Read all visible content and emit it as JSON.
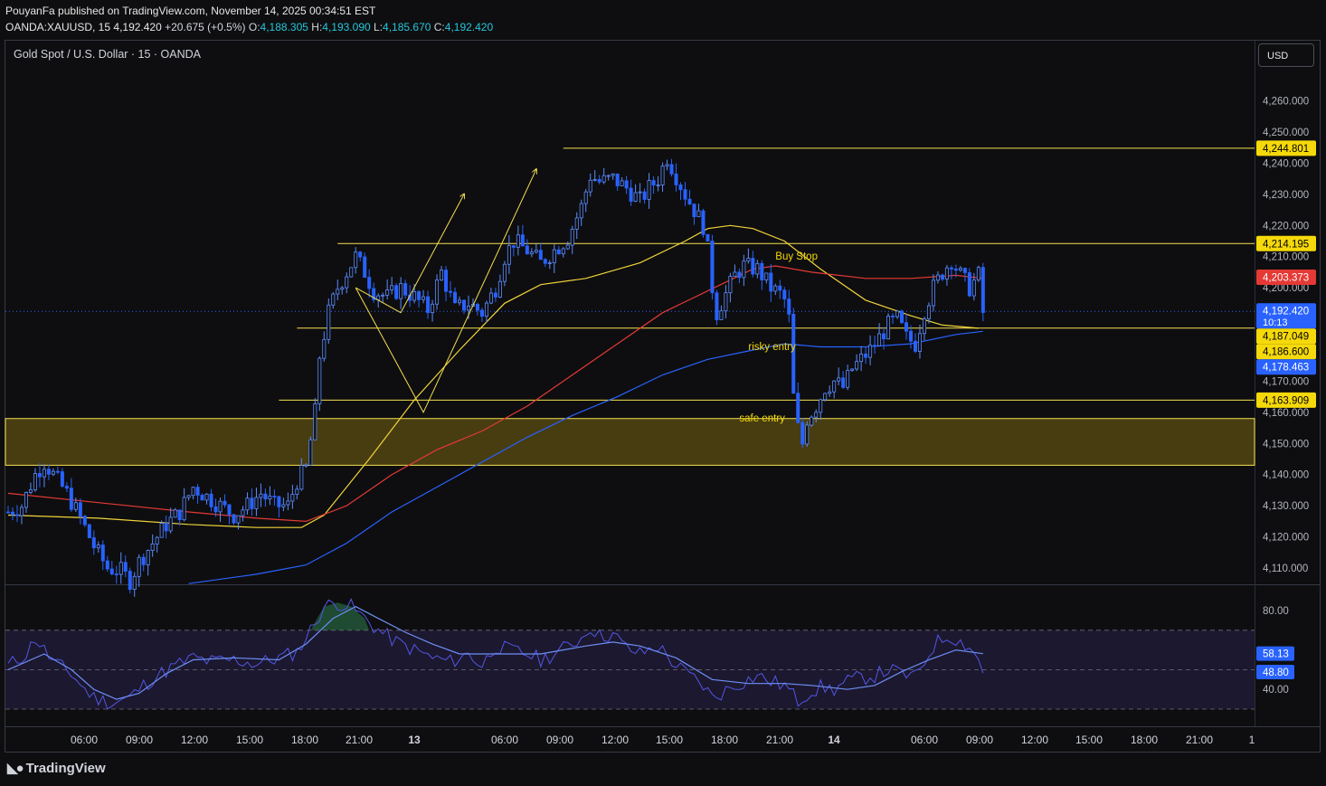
{
  "header": {
    "author": "PouyanFa",
    "published": "published on TradingView.com, November 14, 2025 00:34:51 EST",
    "symbol": "OANDA:XAUUSD, 15",
    "last": "4,192.420",
    "change": "+20.675 (+0.5%)",
    "o_label": "O:",
    "o": "4,188.305",
    "h_label": "H:",
    "h": "4,193.090",
    "l_label": "L:",
    "l": "4,185.670",
    "c_label": "C:",
    "c": "4,192.420"
  },
  "instrument_title": "Gold Spot / U.S. Dollar · 15 · OANDA",
  "currency_button": "USD",
  "footer_brand": "TradingView",
  "colors": {
    "background": "#0e0e10",
    "candle": "#2962ff",
    "ema_yellow": "#f0d43a",
    "ema_red": "#e53935",
    "ema_blue": "#2962ff",
    "level_line": "#f5e050",
    "zone_fill": "#5b4d12",
    "rsi": "#5356e6",
    "rsi_ma": "#6d8ff5"
  },
  "chart_data": {
    "type": "candlestick",
    "title": "Gold Spot / U.S. Dollar · 15 · OANDA",
    "y_axis": {
      "ticks": [
        4110,
        4120,
        4130,
        4140,
        4150,
        4160,
        4170,
        4180,
        4190,
        4200,
        4210,
        4220,
        4230,
        4240,
        4250,
        4260
      ],
      "tick_labels": [
        "4,110.000",
        "4,120.000",
        "4,130.000",
        "4,140.000",
        "4,150.000",
        "4,160.000",
        "4,170.000",
        "4,180.000",
        "4,190.000",
        "4,200.000",
        "4,210.000",
        "4,220.000",
        "4,230.000",
        "4,240.000",
        "4,250.000",
        "4,260.000"
      ],
      "ylim": [
        4105,
        4262
      ]
    },
    "x_axis": {
      "labels": [
        "06:00",
        "09:00",
        "12:00",
        "15:00",
        "18:00",
        "21:00",
        "13",
        "06:00",
        "09:00",
        "12:00",
        "15:00",
        "18:00",
        "21:00",
        "14",
        "06:00",
        "09:00",
        "12:00",
        "15:00",
        "18:00",
        "21:00",
        "1"
      ],
      "bold_labels": [
        "13",
        "14"
      ]
    },
    "price_path": [
      [
        0,
        4128
      ],
      [
        3,
        4130
      ],
      [
        6,
        4140
      ],
      [
        8,
        4144
      ],
      [
        10,
        4140
      ],
      [
        13,
        4134
      ],
      [
        16,
        4126
      ],
      [
        19,
        4117
      ],
      [
        22,
        4110
      ],
      [
        25,
        4109
      ],
      [
        27,
        4106
      ],
      [
        29,
        4112
      ],
      [
        32,
        4118
      ],
      [
        35,
        4124
      ],
      [
        38,
        4128
      ],
      [
        41,
        4136
      ],
      [
        44,
        4133
      ],
      [
        47,
        4130
      ],
      [
        50,
        4127
      ],
      [
        53,
        4130
      ],
      [
        56,
        4134
      ],
      [
        59,
        4130
      ],
      [
        62,
        4130
      ],
      [
        64,
        4138
      ],
      [
        66,
        4142
      ],
      [
        68,
        4160
      ],
      [
        69,
        4178
      ],
      [
        71,
        4192
      ],
      [
        73,
        4200
      ],
      [
        75,
        4205
      ],
      [
        77,
        4210
      ],
      [
        79,
        4205
      ],
      [
        81,
        4199
      ],
      [
        84,
        4197
      ],
      [
        87,
        4200
      ],
      [
        90,
        4197
      ],
      [
        93,
        4193
      ],
      [
        96,
        4205
      ],
      [
        99,
        4193
      ],
      [
        102,
        4195
      ],
      [
        105,
        4192
      ],
      [
        108,
        4200
      ],
      [
        110,
        4210
      ],
      [
        112,
        4215
      ],
      [
        115,
        4212
      ],
      [
        118,
        4208
      ],
      [
        121,
        4212
      ],
      [
        124,
        4216
      ],
      [
        127,
        4226
      ],
      [
        129,
        4236
      ],
      [
        131,
        4234
      ],
      [
        134,
        4235
      ],
      [
        137,
        4232
      ],
      [
        140,
        4228
      ],
      [
        142,
        4232
      ],
      [
        144,
        4235
      ],
      [
        146,
        4242
      ],
      [
        148,
        4236
      ],
      [
        150,
        4230
      ],
      [
        152,
        4225
      ],
      [
        154,
        4220
      ],
      [
        155,
        4212
      ],
      [
        156,
        4200
      ],
      [
        157,
        4192
      ],
      [
        159,
        4198
      ],
      [
        161,
        4204
      ],
      [
        163,
        4207
      ],
      [
        166,
        4206
      ],
      [
        169,
        4200
      ],
      [
        171,
        4198
      ],
      [
        172,
        4196
      ],
      [
        173,
        4190
      ],
      [
        174,
        4165
      ],
      [
        175,
        4155
      ],
      [
        176,
        4150
      ],
      [
        177,
        4158
      ],
      [
        179,
        4162
      ],
      [
        181,
        4168
      ],
      [
        183,
        4170
      ],
      [
        185,
        4168
      ],
      [
        187,
        4174
      ],
      [
        189,
        4177
      ],
      [
        191,
        4180
      ],
      [
        193,
        4184
      ],
      [
        195,
        4188
      ],
      [
        197,
        4190
      ],
      [
        199,
        4184
      ],
      [
        201,
        4182
      ],
      [
        203,
        4193
      ],
      [
        205,
        4200
      ],
      [
        207,
        4205
      ],
      [
        209,
        4209
      ],
      [
        211,
        4204
      ],
      [
        213,
        4200
      ],
      [
        215,
        4204
      ],
      [
        216,
        4192
      ]
    ],
    "series": [
      {
        "name": "",
        "kind": "ema",
        "color": "#f0d43a",
        "points": [
          [
            0,
            4127
          ],
          [
            20,
            4126
          ],
          [
            40,
            4124
          ],
          [
            55,
            4123
          ],
          [
            65,
            4123
          ],
          [
            70,
            4127
          ],
          [
            80,
            4145
          ],
          [
            90,
            4164
          ],
          [
            100,
            4180
          ],
          [
            110,
            4195
          ],
          [
            118,
            4201
          ],
          [
            128,
            4203
          ],
          [
            140,
            4208
          ],
          [
            150,
            4215
          ],
          [
            155,
            4219
          ],
          [
            160,
            4220
          ],
          [
            165,
            4219
          ],
          [
            172,
            4215
          ],
          [
            180,
            4206
          ],
          [
            190,
            4196
          ],
          [
            200,
            4191
          ],
          [
            207,
            4188
          ],
          [
            215,
            4187
          ]
        ]
      },
      {
        "name": "",
        "kind": "ema",
        "color": "#e53935",
        "points": [
          [
            0,
            4134
          ],
          [
            20,
            4131
          ],
          [
            40,
            4128
          ],
          [
            55,
            4126
          ],
          [
            66,
            4125
          ],
          [
            75,
            4130
          ],
          [
            85,
            4140
          ],
          [
            95,
            4148
          ],
          [
            105,
            4154
          ],
          [
            115,
            4162
          ],
          [
            125,
            4172
          ],
          [
            135,
            4182
          ],
          [
            145,
            4192
          ],
          [
            155,
            4199
          ],
          [
            165,
            4206
          ],
          [
            170,
            4207
          ],
          [
            178,
            4205
          ],
          [
            190,
            4203
          ],
          [
            200,
            4203
          ],
          [
            210,
            4204
          ],
          [
            216,
            4203
          ]
        ]
      },
      {
        "name": "",
        "kind": "ema",
        "color": "#2962ff",
        "points": [
          [
            40,
            4105
          ],
          [
            55,
            4108
          ],
          [
            66,
            4111
          ],
          [
            75,
            4118
          ],
          [
            85,
            4128
          ],
          [
            95,
            4136
          ],
          [
            105,
            4144
          ],
          [
            115,
            4152
          ],
          [
            125,
            4159
          ],
          [
            135,
            4165
          ],
          [
            145,
            4172
          ],
          [
            155,
            4177
          ],
          [
            165,
            4180
          ],
          [
            172,
            4182
          ],
          [
            180,
            4181
          ],
          [
            190,
            4181
          ],
          [
            200,
            4182
          ],
          [
            210,
            4185
          ],
          [
            216,
            4186
          ]
        ]
      }
    ],
    "levels": [
      {
        "price": 4244.801,
        "x_start": 123,
        "label": "4,244.801"
      },
      {
        "price": 4214.195,
        "x_start": 73,
        "label": "4,214.195"
      },
      {
        "price": 4187.049,
        "x_start": 64,
        "label": "4,187.049"
      },
      {
        "price": 4163.909,
        "x_start": 60,
        "label": "4,163.909"
      }
    ],
    "zone": {
      "low": 4143,
      "high": 4158
    },
    "annotations": [
      {
        "text": "Buy Stop",
        "x": 170,
        "y": 4209
      },
      {
        "text": "risky entry",
        "x": 164,
        "y": 4180
      },
      {
        "text": "safe entry",
        "x": 162,
        "y": 4157
      }
    ],
    "pattern_lines": [
      {
        "points": [
          [
            77,
            4200
          ],
          [
            87,
            4192
          ],
          [
            101,
            4230
          ]
        ],
        "arrow": true
      },
      {
        "points": [
          [
            77,
            4200
          ],
          [
            92,
            4160
          ],
          [
            117,
            4238
          ]
        ],
        "arrow": true
      }
    ],
    "price_labels": [
      {
        "label": "4,244.801",
        "price": 4244.801,
        "color": "#f5d90a",
        "text_color": "#000000"
      },
      {
        "label": "4,214.195",
        "price": 4214.195,
        "color": "#f5d90a",
        "text_color": "#000000"
      },
      {
        "label": "4,203.373",
        "price": 4203.373,
        "color": "#e53935",
        "text_color": "#ffffff"
      },
      {
        "label": "4,192.420",
        "price": 4192.42,
        "color": "#2962ff",
        "text_color": "#ffffff",
        "sub": "10:13"
      },
      {
        "label": "4,187.049",
        "price": 4187.049,
        "color": "#f5d90a",
        "text_color": "#000000"
      },
      {
        "label": "4,186.600",
        "price": 4186.6,
        "color": "#f5d90a",
        "text_color": "#000000"
      },
      {
        "label": "4,178.463",
        "price": 4178.463,
        "color": "#2962ff",
        "text_color": "#ffffff"
      },
      {
        "label": "4,163.909",
        "price": 4163.909,
        "color": "#f5d90a",
        "text_color": "#000000"
      }
    ],
    "rsi": {
      "ticks": [
        80,
        40
      ],
      "tick_labels": [
        "80.00",
        "40.00"
      ],
      "ylim": [
        28,
        92
      ],
      "bands": [
        70,
        30
      ],
      "mid": 50,
      "labels": [
        {
          "label": "58.13",
          "value": 58.13
        },
        {
          "label": "48.80",
          "value": 48.8
        }
      ],
      "rsi_path": [
        [
          0,
          52
        ],
        [
          4,
          58
        ],
        [
          6,
          66
        ],
        [
          8,
          60
        ],
        [
          10,
          54
        ],
        [
          14,
          48
        ],
        [
          17,
          40
        ],
        [
          19,
          36
        ],
        [
          23,
          33
        ],
        [
          27,
          36
        ],
        [
          30,
          42
        ],
        [
          33,
          47
        ],
        [
          37,
          52
        ],
        [
          41,
          56
        ],
        [
          45,
          54
        ],
        [
          50,
          55
        ],
        [
          55,
          53
        ],
        [
          60,
          56
        ],
        [
          64,
          59
        ],
        [
          67,
          70
        ],
        [
          70,
          82
        ],
        [
          73,
          84
        ],
        [
          76,
          82
        ],
        [
          79,
          76
        ],
        [
          82,
          70
        ],
        [
          86,
          64
        ],
        [
          90,
          60
        ],
        [
          94,
          56
        ],
        [
          98,
          54
        ],
        [
          102,
          58
        ],
        [
          105,
          52
        ],
        [
          108,
          62
        ],
        [
          111,
          60
        ],
        [
          115,
          58
        ],
        [
          118,
          55
        ],
        [
          121,
          58
        ],
        [
          124,
          62
        ],
        [
          127,
          66
        ],
        [
          129,
          72
        ],
        [
          131,
          67
        ],
        [
          134,
          68
        ],
        [
          137,
          61
        ],
        [
          140,
          58
        ],
        [
          144,
          62
        ],
        [
          148,
          52
        ],
        [
          151,
          47
        ],
        [
          154,
          42
        ],
        [
          156,
          36
        ],
        [
          158,
          38
        ],
        [
          160,
          41
        ],
        [
          163,
          44
        ],
        [
          166,
          47
        ],
        [
          169,
          44
        ],
        [
          172,
          42
        ],
        [
          174,
          37
        ],
        [
          175,
          34
        ],
        [
          177,
          38
        ],
        [
          180,
          41
        ],
        [
          183,
          40
        ],
        [
          186,
          44
        ],
        [
          189,
          46
        ],
        [
          192,
          47
        ],
        [
          195,
          50
        ],
        [
          198,
          48
        ],
        [
          201,
          46
        ],
        [
          203,
          54
        ],
        [
          205,
          62
        ],
        [
          207,
          66
        ],
        [
          209,
          67
        ],
        [
          211,
          64
        ],
        [
          213,
          62
        ],
        [
          215,
          55
        ],
        [
          216,
          48.8
        ]
      ],
      "ma_path": [
        [
          0,
          50
        ],
        [
          8,
          58
        ],
        [
          14,
          50
        ],
        [
          19,
          40
        ],
        [
          24,
          35
        ],
        [
          29,
          38
        ],
        [
          35,
          48
        ],
        [
          41,
          55
        ],
        [
          50,
          56
        ],
        [
          60,
          55
        ],
        [
          66,
          63
        ],
        [
          72,
          76
        ],
        [
          77,
          82
        ],
        [
          82,
          76
        ],
        [
          88,
          69
        ],
        [
          94,
          63
        ],
        [
          100,
          58
        ],
        [
          108,
          58
        ],
        [
          118,
          58
        ],
        [
          128,
          62
        ],
        [
          134,
          64
        ],
        [
          140,
          62
        ],
        [
          148,
          56
        ],
        [
          156,
          45
        ],
        [
          164,
          43
        ],
        [
          172,
          43
        ],
        [
          178,
          42
        ],
        [
          186,
          40
        ],
        [
          192,
          42
        ],
        [
          198,
          49
        ],
        [
          204,
          55
        ],
        [
          210,
          60
        ],
        [
          216,
          58.13
        ]
      ]
    }
  }
}
